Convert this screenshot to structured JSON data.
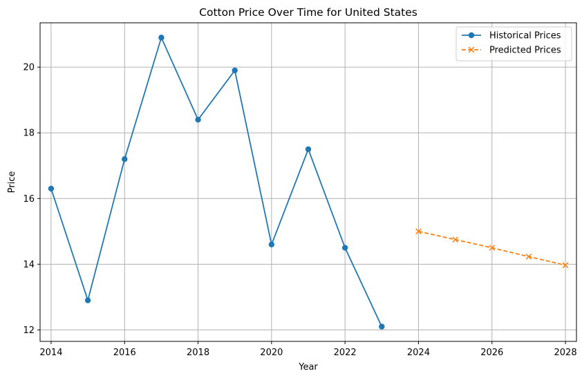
{
  "chart_data": {
    "type": "line",
    "title": "Cotton Price Over Time for United States",
    "xlabel": "Year",
    "ylabel": "Price",
    "xlim": [
      2013.7,
      2028.3
    ],
    "ylim": [
      11.65,
      21.35
    ],
    "xticks": [
      2014,
      2016,
      2018,
      2020,
      2022,
      2024,
      2026,
      2028
    ],
    "yticks": [
      12,
      14,
      16,
      18,
      20
    ],
    "grid": true,
    "legend_position": "top-right",
    "series": [
      {
        "name": "Historical Prices",
        "color": "#1f77b4",
        "style": "solid",
        "marker": "circle",
        "x": [
          2014,
          2015,
          2016,
          2017,
          2018,
          2019,
          2020,
          2021,
          2022,
          2023
        ],
        "y": [
          16.3,
          12.9,
          17.2,
          20.9,
          18.4,
          19.9,
          14.6,
          17.5,
          14.5,
          12.1
        ]
      },
      {
        "name": "Predicted Prices",
        "color": "#ff7f0e",
        "style": "dashed",
        "marker": "x",
        "x": [
          2024,
          2025,
          2026,
          2027,
          2028
        ],
        "y": [
          15.0,
          14.75,
          14.5,
          14.23,
          13.97
        ]
      }
    ]
  }
}
